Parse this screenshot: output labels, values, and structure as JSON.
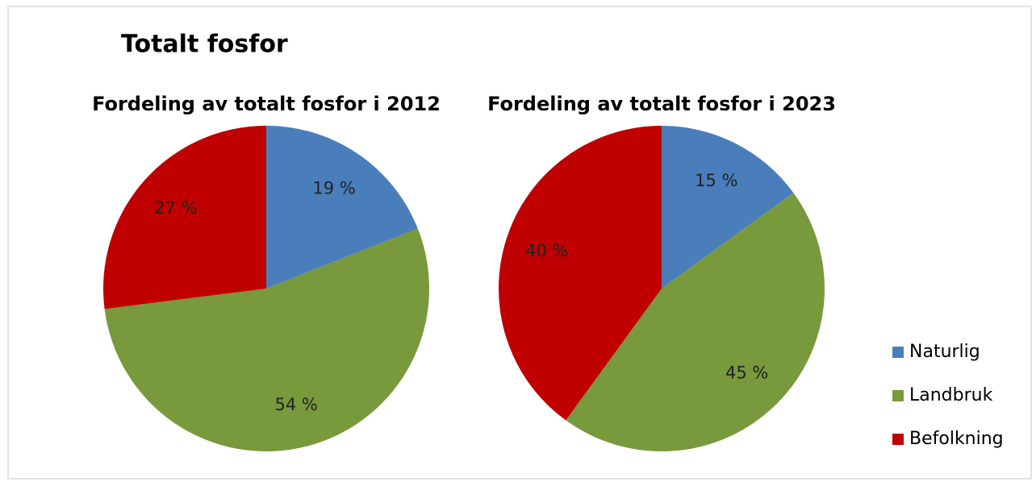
{
  "title": "Totalt fosfor",
  "chart_data": [
    {
      "type": "pie",
      "title": "Fordeling av totalt fosfor i 2012",
      "categories": [
        "Naturlig",
        "Landbruk",
        "Befolkning"
      ],
      "values": [
        19,
        54,
        27
      ],
      "value_labels": [
        "19 %",
        "54 %",
        "27 %"
      ],
      "colors": [
        "#4a7ebb",
        "#789a3c",
        "#c00000"
      ],
      "legend": "right"
    },
    {
      "type": "pie",
      "title": "Fordeling av totalt fosfor i 2023",
      "categories": [
        "Naturlig",
        "Landbruk",
        "Befolkning"
      ],
      "values": [
        15,
        45,
        40
      ],
      "value_labels": [
        "15 %",
        "45 %",
        "40 %"
      ],
      "colors": [
        "#4a7ebb",
        "#789a3c",
        "#c00000"
      ],
      "legend": "right"
    }
  ]
}
